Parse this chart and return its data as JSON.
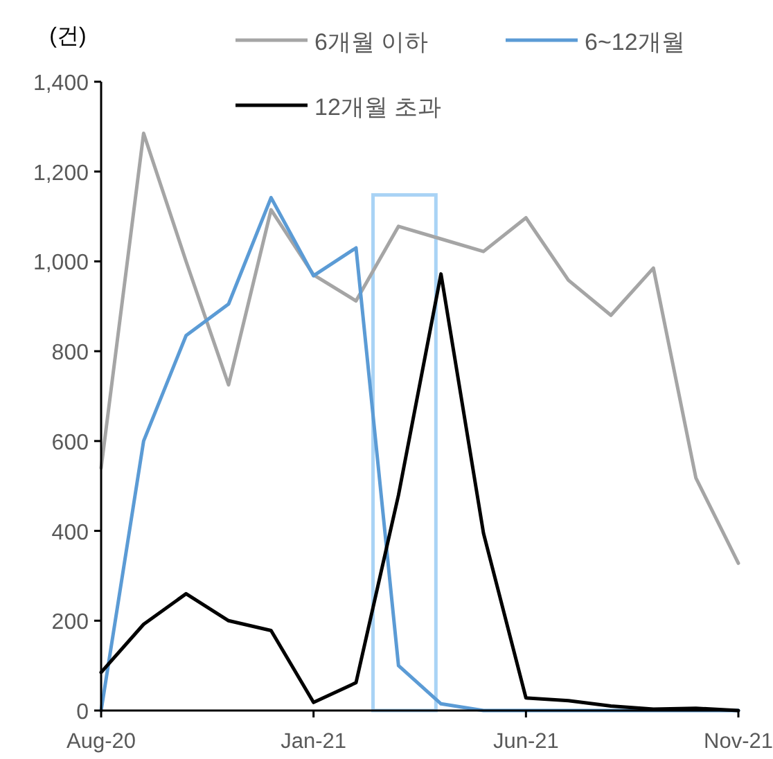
{
  "chart_data": {
    "type": "line",
    "ylabel": "(건)",
    "categories": [
      "Aug-20",
      null,
      null,
      null,
      null,
      "Jan-21",
      null,
      null,
      null,
      null,
      "Jun-21",
      null,
      null,
      null,
      null,
      "Nov-21"
    ],
    "series": [
      {
        "name": "6개월 이하",
        "color": "#a5a5a5",
        "values": [
          540,
          1285,
          1000,
          725,
          1115,
          970,
          912,
          1078,
          1050,
          1022,
          1097,
          958,
          880,
          985,
          518,
          328
        ]
      },
      {
        "name": "6~12개월",
        "color": "#5b9bd5",
        "values": [
          0,
          600,
          835,
          905,
          1142,
          968,
          1030,
          100,
          15,
          0,
          0,
          0,
          0,
          0,
          0,
          0
        ]
      },
      {
        "name": "12개월 초과",
        "color": "#000000",
        "values": [
          85,
          192,
          260,
          200,
          178,
          18,
          62,
          480,
          972,
          395,
          28,
          22,
          10,
          3,
          5,
          0
        ]
      }
    ],
    "ylim": [
      0,
      1400
    ],
    "yticks": [
      0,
      200,
      400,
      600,
      800,
      {
        "value": 1000,
        "label": "1,000"
      },
      {
        "value": 1200,
        "label": "1,200"
      },
      {
        "value": 1400,
        "label": "1,400"
      }
    ],
    "legend": "top",
    "grid": false,
    "line_style": "solid",
    "marker": "none"
  }
}
